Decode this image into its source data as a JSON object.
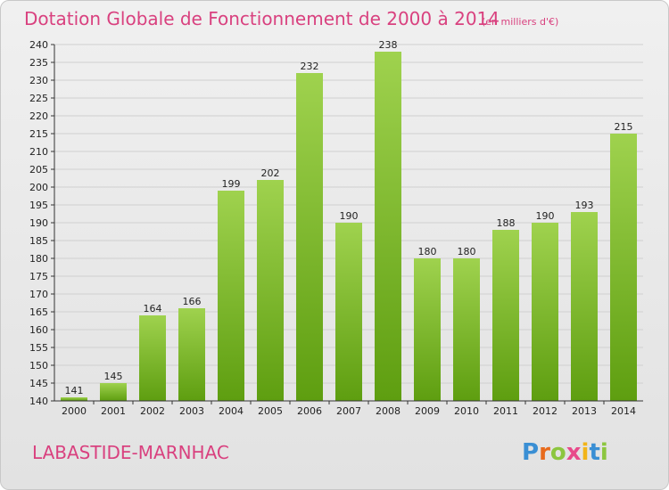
{
  "chart_data": {
    "type": "bar",
    "title": "Dotation Globale de Fonctionnement de 2000 à 2014",
    "subtitle": "(en milliers d'€)",
    "categories": [
      "2000",
      "2001",
      "2002",
      "2003",
      "2004",
      "2005",
      "2006",
      "2007",
      "2008",
      "2009",
      "2010",
      "2011",
      "2012",
      "2013",
      "2014"
    ],
    "values": [
      141,
      145,
      164,
      166,
      199,
      202,
      232,
      190,
      238,
      180,
      180,
      188,
      190,
      193,
      215
    ],
    "xlabel": "",
    "ylabel": "",
    "ylim": [
      140,
      240
    ],
    "ytick_step": 5,
    "grid": true,
    "legend": "none",
    "colors": {
      "bar_light": "#9fd24e",
      "bar_dark": "#5e9e10",
      "accent": "#d9417f"
    }
  },
  "footer": {
    "commune": "LABASTIDE-MARNHAC"
  },
  "logo": {
    "text": "Proxiti",
    "letters": [
      {
        "ch": "P",
        "color": "#3a8fd4"
      },
      {
        "ch": "r",
        "color": "#e86a1c"
      },
      {
        "ch": "o",
        "color": "#8cc63f"
      },
      {
        "ch": "x",
        "color": "#e84a8a"
      },
      {
        "ch": "i",
        "color": "#f2b418"
      },
      {
        "ch": "t",
        "color": "#3a8fd4"
      },
      {
        "ch": "i",
        "color": "#8cc63f"
      }
    ]
  }
}
